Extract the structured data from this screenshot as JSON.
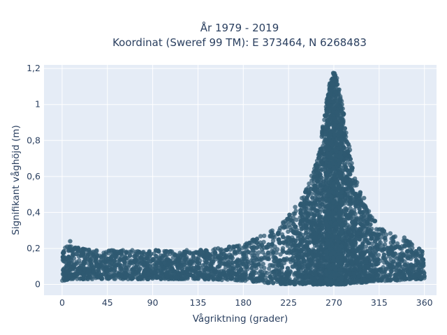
{
  "chart_data": {
    "type": "scatter",
    "title": "År 1979 - 2019",
    "subtitle": "Koordinat (Sweref 99 TM): E 373464, N 6268483",
    "xlabel": "Vågriktning (grader)",
    "ylabel": "Signifikant våghöjd (m)",
    "xlim": [
      -18,
      372
    ],
    "ylim": [
      -0.06,
      1.22
    ],
    "x_ticks": [
      0,
      45,
      90,
      135,
      180,
      225,
      270,
      315,
      360
    ],
    "x_tick_labels": [
      "0",
      "45",
      "90",
      "135",
      "180",
      "225",
      "270",
      "315",
      "360"
    ],
    "y_ticks": [
      0,
      0.2,
      0.4,
      0.6,
      0.8,
      1,
      1.2
    ],
    "y_tick_labels": [
      "0",
      "0,2",
      "0,4",
      "0,6",
      "0,8",
      "1",
      "1,2"
    ],
    "grid": true,
    "legend": "none",
    "marker_color": "#2f5a72",
    "background_color": "#e5ecf6",
    "envelope": {
      "x": [
        0,
        10,
        20,
        45,
        90,
        135,
        180,
        200,
        225,
        240,
        250,
        255,
        260,
        265,
        268,
        270,
        272,
        275,
        280,
        285,
        290,
        300,
        315,
        330,
        345,
        360
      ],
      "y_min": [
        0.02,
        0.03,
        0.03,
        0.03,
        0.03,
        0.03,
        0.02,
        0.01,
        0.0,
        0.0,
        0.0,
        0.0,
        0.0,
        0.0,
        0.0,
        0.0,
        0.0,
        0.0,
        0.0,
        0.0,
        0.01,
        0.01,
        0.02,
        0.02,
        0.03,
        0.03
      ],
      "y_max": [
        0.22,
        0.21,
        0.2,
        0.19,
        0.19,
        0.19,
        0.22,
        0.28,
        0.38,
        0.5,
        0.64,
        0.75,
        0.92,
        1.1,
        1.17,
        1.19,
        1.18,
        1.1,
        0.95,
        0.78,
        0.62,
        0.45,
        0.33,
        0.27,
        0.24,
        0.2
      ]
    },
    "outliers": [
      {
        "x": 8,
        "y": 0.24
      },
      {
        "x": 5,
        "y": 0.21
      },
      {
        "x": 155,
        "y": 0.2
      },
      {
        "x": 240,
        "y": 0.45
      },
      {
        "x": 300,
        "y": 0.48
      },
      {
        "x": 340,
        "y": 0.26
      }
    ]
  }
}
